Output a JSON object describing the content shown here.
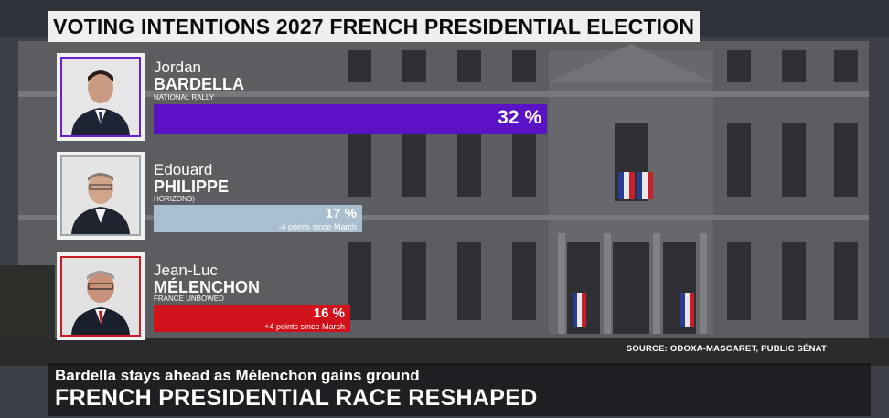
{
  "title": "VOTING INTENTIONS 2027 FRENCH PRESIDENTIAL ELECTION",
  "colors": {
    "bardella": "#5b12c7",
    "philippe": "#a9bfcf",
    "melenchon": "#d2121b",
    "frame_bardella": "#6a1fd0",
    "frame_philippe": "#9aa6b0",
    "frame_melenchon": "#cc1c27"
  },
  "chart_data": {
    "type": "bar",
    "orientation": "horizontal",
    "categories": [
      "Jordan BARDELLA",
      "Edouard PHILIPPE",
      "Jean-Luc MÉLENCHON"
    ],
    "values": [
      32,
      17,
      16
    ],
    "unit": "%",
    "xlim": [
      0,
      32
    ],
    "candidates": [
      {
        "first": "Jordan",
        "last": "BARDELLA",
        "party": "NATIONAL RALLY",
        "value": 32,
        "value_label": "32 %",
        "note": ""
      },
      {
        "first": "Edouard",
        "last": "PHILIPPE",
        "party": "HORIZONS)",
        "value": 17,
        "value_label": "17 %",
        "note": "-4 points since March"
      },
      {
        "first": "Jean-Luc",
        "last": "MÉLENCHON",
        "party": "FRANCE UNBOWED",
        "value": 16,
        "value_label": "16 %",
        "note": "+4 points since March"
      }
    ]
  },
  "source": "SOURCE: ODOXA-MASCARET, PUBLIC SÉNAT",
  "lower_third": {
    "subtitle": "Bardella stays ahead as Mélenchon gains ground",
    "headline": "FRENCH PRESIDENTIAL RACE RESHAPED"
  }
}
